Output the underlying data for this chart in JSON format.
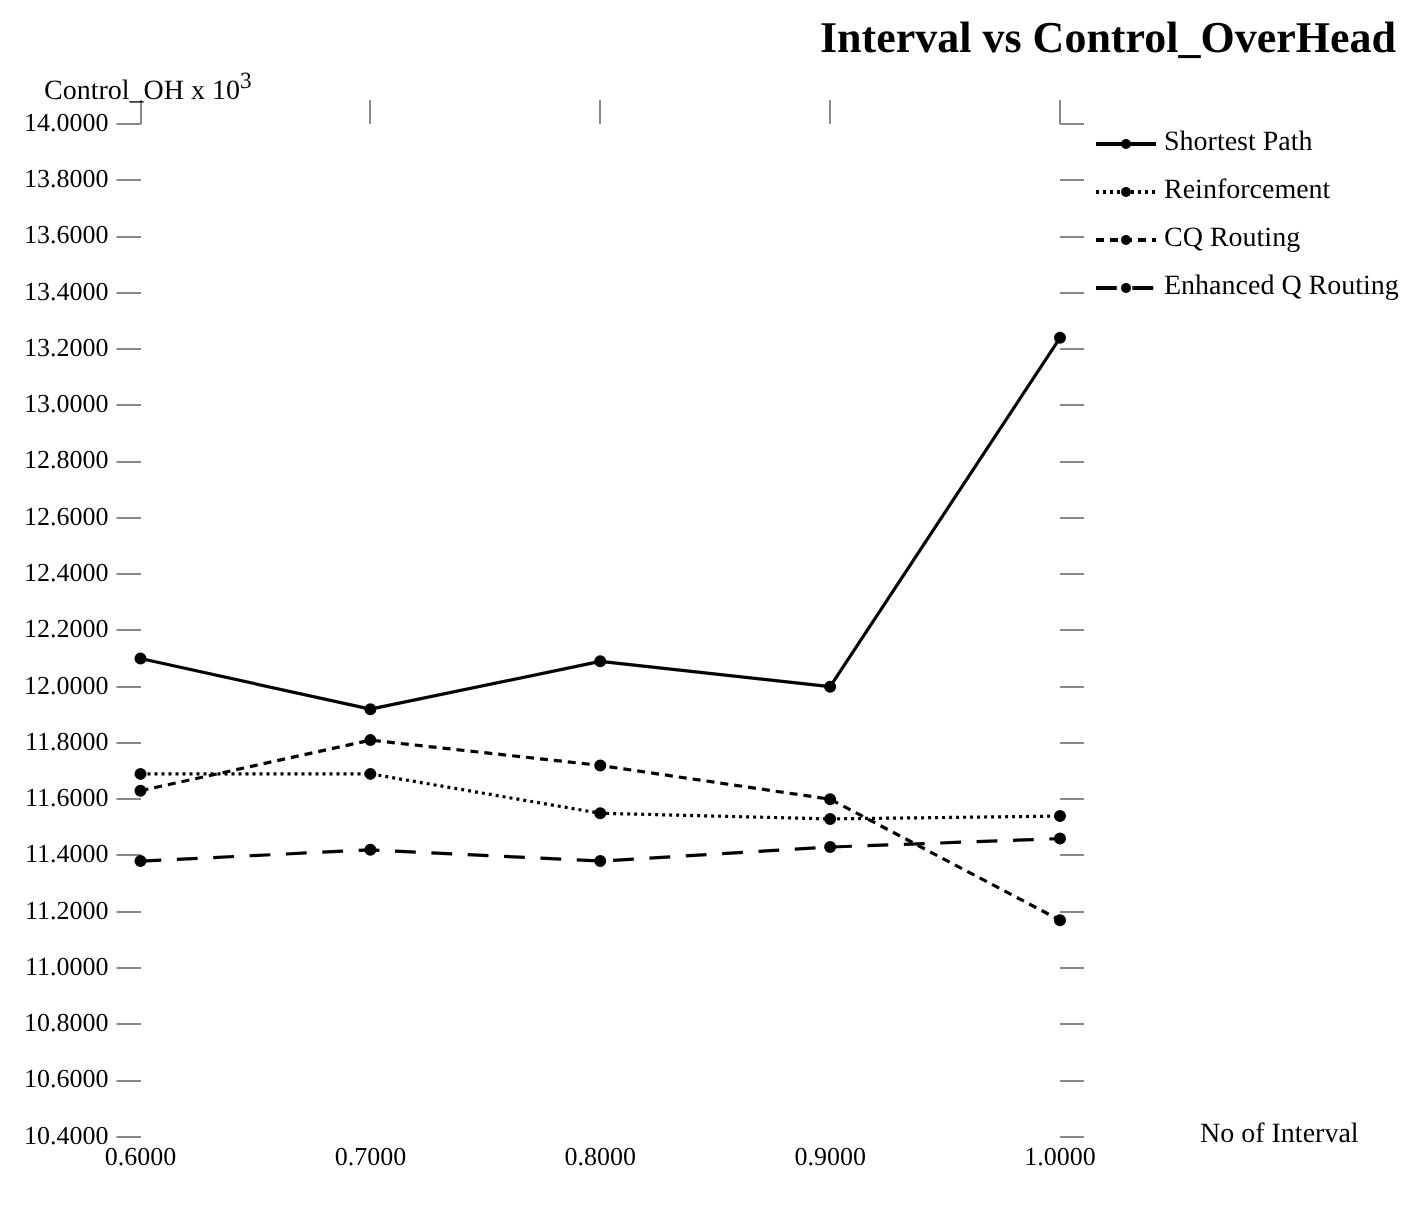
{
  "chart_data": {
    "type": "line",
    "title": "Interval vs Control_OverHead",
    "xlabel": "No of Interval",
    "ylabel": "Control_OH x 10$^{3}$",
    "x": [
      0.6,
      0.7,
      0.8,
      0.9,
      1.0
    ],
    "xlim": [
      0.6,
      1.0
    ],
    "xticks": [
      {
        "value": 0.6,
        "label": "0.6000"
      },
      {
        "value": 0.7,
        "label": "0.7000"
      },
      {
        "value": 0.8,
        "label": "0.8000"
      },
      {
        "value": 0.9,
        "label": "0.9000"
      },
      {
        "value": 1.0,
        "label": "1.0000"
      }
    ],
    "ylim": [
      10.4,
      14.0
    ],
    "yticks": [
      {
        "value": 10.4,
        "label": "10.4000"
      },
      {
        "value": 10.6,
        "label": "10.6000"
      },
      {
        "value": 10.8,
        "label": "10.8000"
      },
      {
        "value": 11.0,
        "label": "11.0000"
      },
      {
        "value": 11.2,
        "label": "11.2000"
      },
      {
        "value": 11.4,
        "label": "11.4000"
      },
      {
        "value": 11.6,
        "label": "11.6000"
      },
      {
        "value": 11.8,
        "label": "11.8000"
      },
      {
        "value": 12.0,
        "label": "12.0000"
      },
      {
        "value": 12.2,
        "label": "12.2000"
      },
      {
        "value": 12.4,
        "label": "12.4000"
      },
      {
        "value": 12.6,
        "label": "12.6000"
      },
      {
        "value": 12.8,
        "label": "12.8000"
      },
      {
        "value": 13.0,
        "label": "13.0000"
      },
      {
        "value": 13.2,
        "label": "13.2000"
      },
      {
        "value": 13.4,
        "label": "13.4000"
      },
      {
        "value": 13.6,
        "label": "13.6000"
      },
      {
        "value": 13.8,
        "label": "13.8000"
      },
      {
        "value": 14.0,
        "label": "14.0000"
      }
    ],
    "series": [
      {
        "name": "Shortest Path",
        "color": "#000000",
        "line_style": "solid",
        "values": [
          12.1,
          11.92,
          12.09,
          12.0,
          13.24
        ]
      },
      {
        "name": "Reinforcement",
        "color": "#000000",
        "line_style": "dotted",
        "values": [
          11.69,
          11.69,
          11.55,
          11.53,
          11.54
        ]
      },
      {
        "name": "CQ Routing",
        "color": "#000000",
        "line_style": "dashed",
        "values": [
          11.63,
          11.81,
          11.72,
          11.6,
          11.17
        ]
      },
      {
        "name": "Enhanced Q Routing",
        "color": "#000000",
        "line_style": "dashed",
        "values": [
          11.38,
          11.42,
          11.38,
          11.43,
          11.46
        ]
      }
    ],
    "marker": "circle",
    "grid": false,
    "legend": "top right"
  }
}
